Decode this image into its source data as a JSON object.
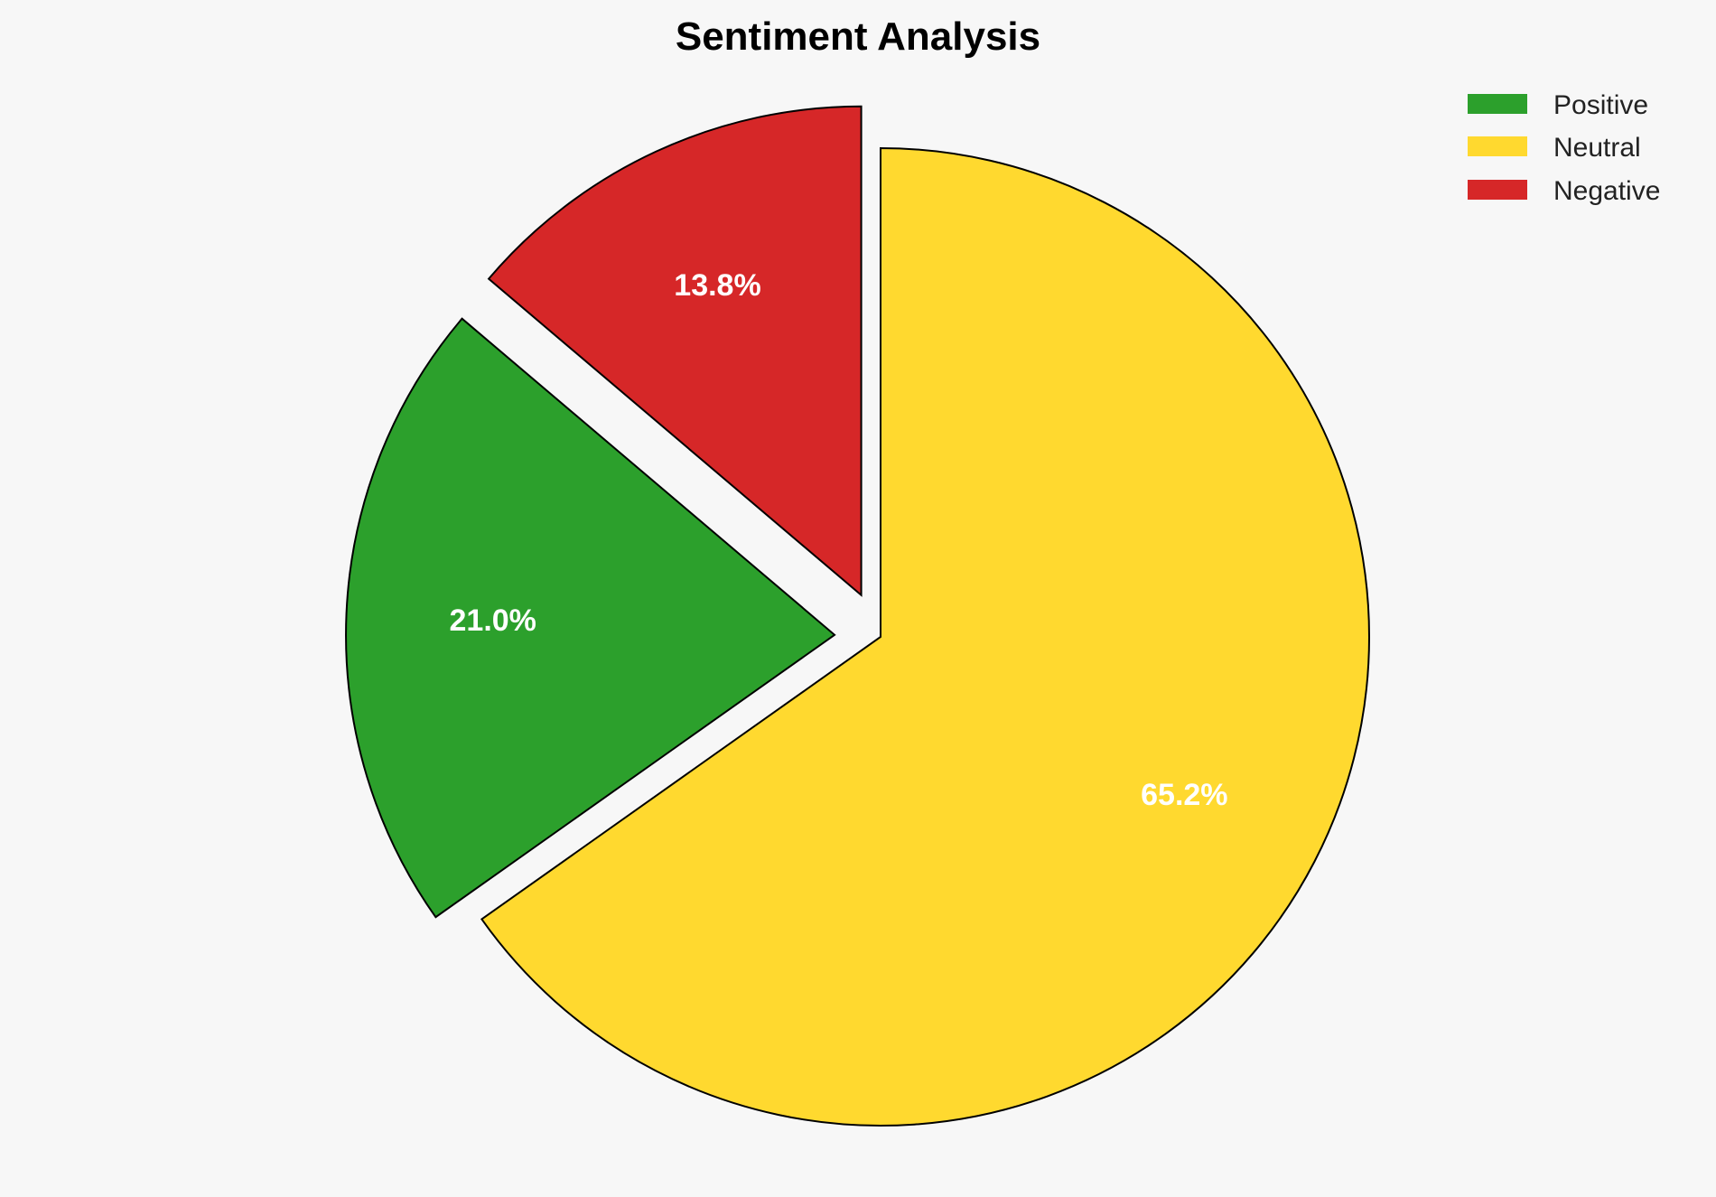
{
  "chart_data": {
    "type": "pie",
    "title": "Sentiment Analysis",
    "legend_position": "top-right",
    "start_angle_deg": 90,
    "direction": "clockwise",
    "slices": [
      {
        "name": "Neutral",
        "value": 65.2,
        "label": "65.2%",
        "color": "#ffd92f",
        "exploded": false
      },
      {
        "name": "Positive",
        "value": 21.0,
        "label": "21.0%",
        "color": "#2ca02c",
        "exploded": true
      },
      {
        "name": "Negative",
        "value": 13.8,
        "label": "13.8%",
        "color": "#d62728",
        "exploded": true
      }
    ],
    "legend": [
      {
        "label": "Positive",
        "color": "#2ca02c"
      },
      {
        "label": "Neutral",
        "color": "#ffd92f"
      },
      {
        "label": "Negative",
        "color": "#d62728"
      }
    ]
  }
}
